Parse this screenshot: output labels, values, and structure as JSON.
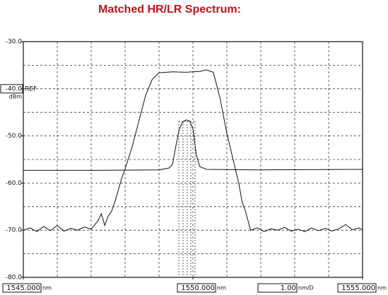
{
  "chart_data": {
    "type": "line",
    "title": "Matched HR/LR Spectrum:",
    "title_color": "#c0141c",
    "xlim": [
      1545,
      1555
    ],
    "ylim": [
      -80,
      -30
    ],
    "xticks": [
      {
        "value": 1545,
        "label": "1545.000"
      },
      {
        "value": 1550,
        "label": "1550.000"
      },
      {
        "value": 1555,
        "label": "1555.000"
      }
    ],
    "yticks": [
      {
        "value": -30,
        "label": "-30.0"
      },
      {
        "value": -40,
        "label": "-40.0"
      },
      {
        "value": -50,
        "label": "-50.0"
      },
      {
        "value": -60,
        "label": "-60.0"
      },
      {
        "value": -70,
        "label": "-70.0"
      },
      {
        "value": -80,
        "label": "-80.0"
      }
    ],
    "x_unit": "nm",
    "y_unit": "dBm",
    "ref_text": "REF",
    "ref_level": -40,
    "scale_label": "1.00",
    "scale_unit": "nm/D",
    "grid": true,
    "series": [
      {
        "color": "#111111",
        "x": [
          1545.0,
          1545.2,
          1545.4,
          1545.6,
          1545.8,
          1546.0,
          1546.2,
          1546.4,
          1546.6,
          1546.8,
          1547.0,
          1547.2,
          1547.3,
          1547.4,
          1547.5,
          1547.6,
          1547.7,
          1547.8,
          1547.9,
          1548.0,
          1548.2,
          1548.4,
          1548.6,
          1548.8,
          1549.0,
          1549.4,
          1549.8,
          1550.2,
          1550.4,
          1550.6,
          1550.8,
          1551.0,
          1551.2,
          1551.35,
          1551.45,
          1551.55,
          1551.7,
          1551.9,
          1552.1,
          1552.3,
          1552.5,
          1552.7,
          1552.9,
          1553.1,
          1553.3,
          1553.5,
          1553.7,
          1553.9,
          1554.1,
          1554.3,
          1554.5,
          1554.7,
          1554.9,
          1555.0
        ],
        "values": [
          -70.0,
          -69.5,
          -70.3,
          -69.2,
          -70.1,
          -69.0,
          -70.2,
          -69.6,
          -70.0,
          -69.3,
          -69.8,
          -68.0,
          -66.5,
          -69.0,
          -67.0,
          -66.0,
          -64.0,
          -61.5,
          -59.0,
          -57.0,
          -52.5,
          -47.0,
          -41.5,
          -38.0,
          -36.6,
          -36.4,
          -36.5,
          -36.3,
          -36.0,
          -36.5,
          -42.0,
          -49.5,
          -55.5,
          -60.0,
          -64.0,
          -66.0,
          -70.0,
          -69.5,
          -70.3,
          -69.7,
          -70.0,
          -69.4,
          -70.2,
          -69.8,
          -70.3,
          -69.5,
          -70.1,
          -69.6,
          -70.2,
          -69.7,
          -68.8,
          -69.9,
          -69.5,
          -70.0
        ]
      },
      {
        "color": "#111111",
        "x": [
          1545.0,
          1547.0,
          1549.0,
          1549.3,
          1549.4,
          1549.5,
          1549.6,
          1549.7,
          1549.8,
          1549.9,
          1550.0,
          1550.1,
          1550.2,
          1550.4,
          1552.0,
          1555.0
        ],
        "values": [
          -57.3,
          -57.3,
          -57.2,
          -56.8,
          -56.0,
          -52.0,
          -48.5,
          -47.0,
          -46.6,
          -46.8,
          -48.5,
          -54.0,
          -56.5,
          -57.1,
          -57.2,
          -57.1
        ]
      }
    ]
  }
}
